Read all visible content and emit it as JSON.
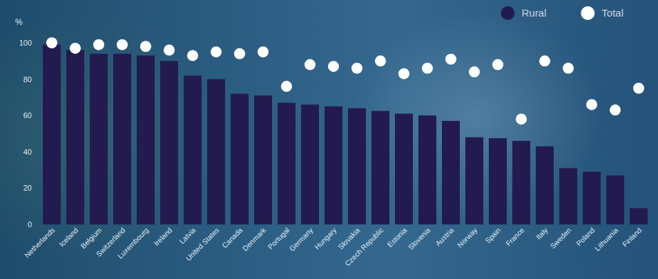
{
  "chart_data": {
    "type": "bar",
    "y_label": "%",
    "categories": [
      "Netherlands",
      "Iceland",
      "Belgium",
      "Switzerland",
      "Luxembourg",
      "Ireland",
      "Latvia",
      "United States",
      "Canada",
      "Denmark",
      "Portugal",
      "Germany",
      "Hungary",
      "Slovakia",
      "Czech Republic",
      "Estonia",
      "Slovenia",
      "Austria",
      "Norway",
      "Spain",
      "France",
      "Italy",
      "Sweden",
      "Poland",
      "Lithuania",
      "Finland"
    ],
    "series": [
      {
        "name": "Rural",
        "type": "bar",
        "color": "#231b4f",
        "values": [
          99,
          96,
          94,
          94,
          93,
          90,
          82,
          80,
          72,
          71,
          67,
          66,
          65,
          64,
          62.5,
          61,
          60,
          57,
          48,
          47.5,
          46,
          43,
          31,
          29,
          27,
          9
        ]
      },
      {
        "name": "Total",
        "type": "scatter",
        "marker": "circle",
        "color": "#ffffff",
        "values": [
          100,
          97,
          99,
          99,
          98,
          96,
          93,
          95,
          94,
          95,
          76,
          88,
          87,
          86,
          90,
          83,
          86,
          91,
          84,
          88,
          58,
          90,
          86,
          66,
          63,
          75
        ]
      }
    ],
    "ylim": [
      0,
      100
    ],
    "yticks": [
      0,
      20,
      40,
      60,
      80,
      100
    ],
    "grid": false,
    "legend": "top-right"
  }
}
